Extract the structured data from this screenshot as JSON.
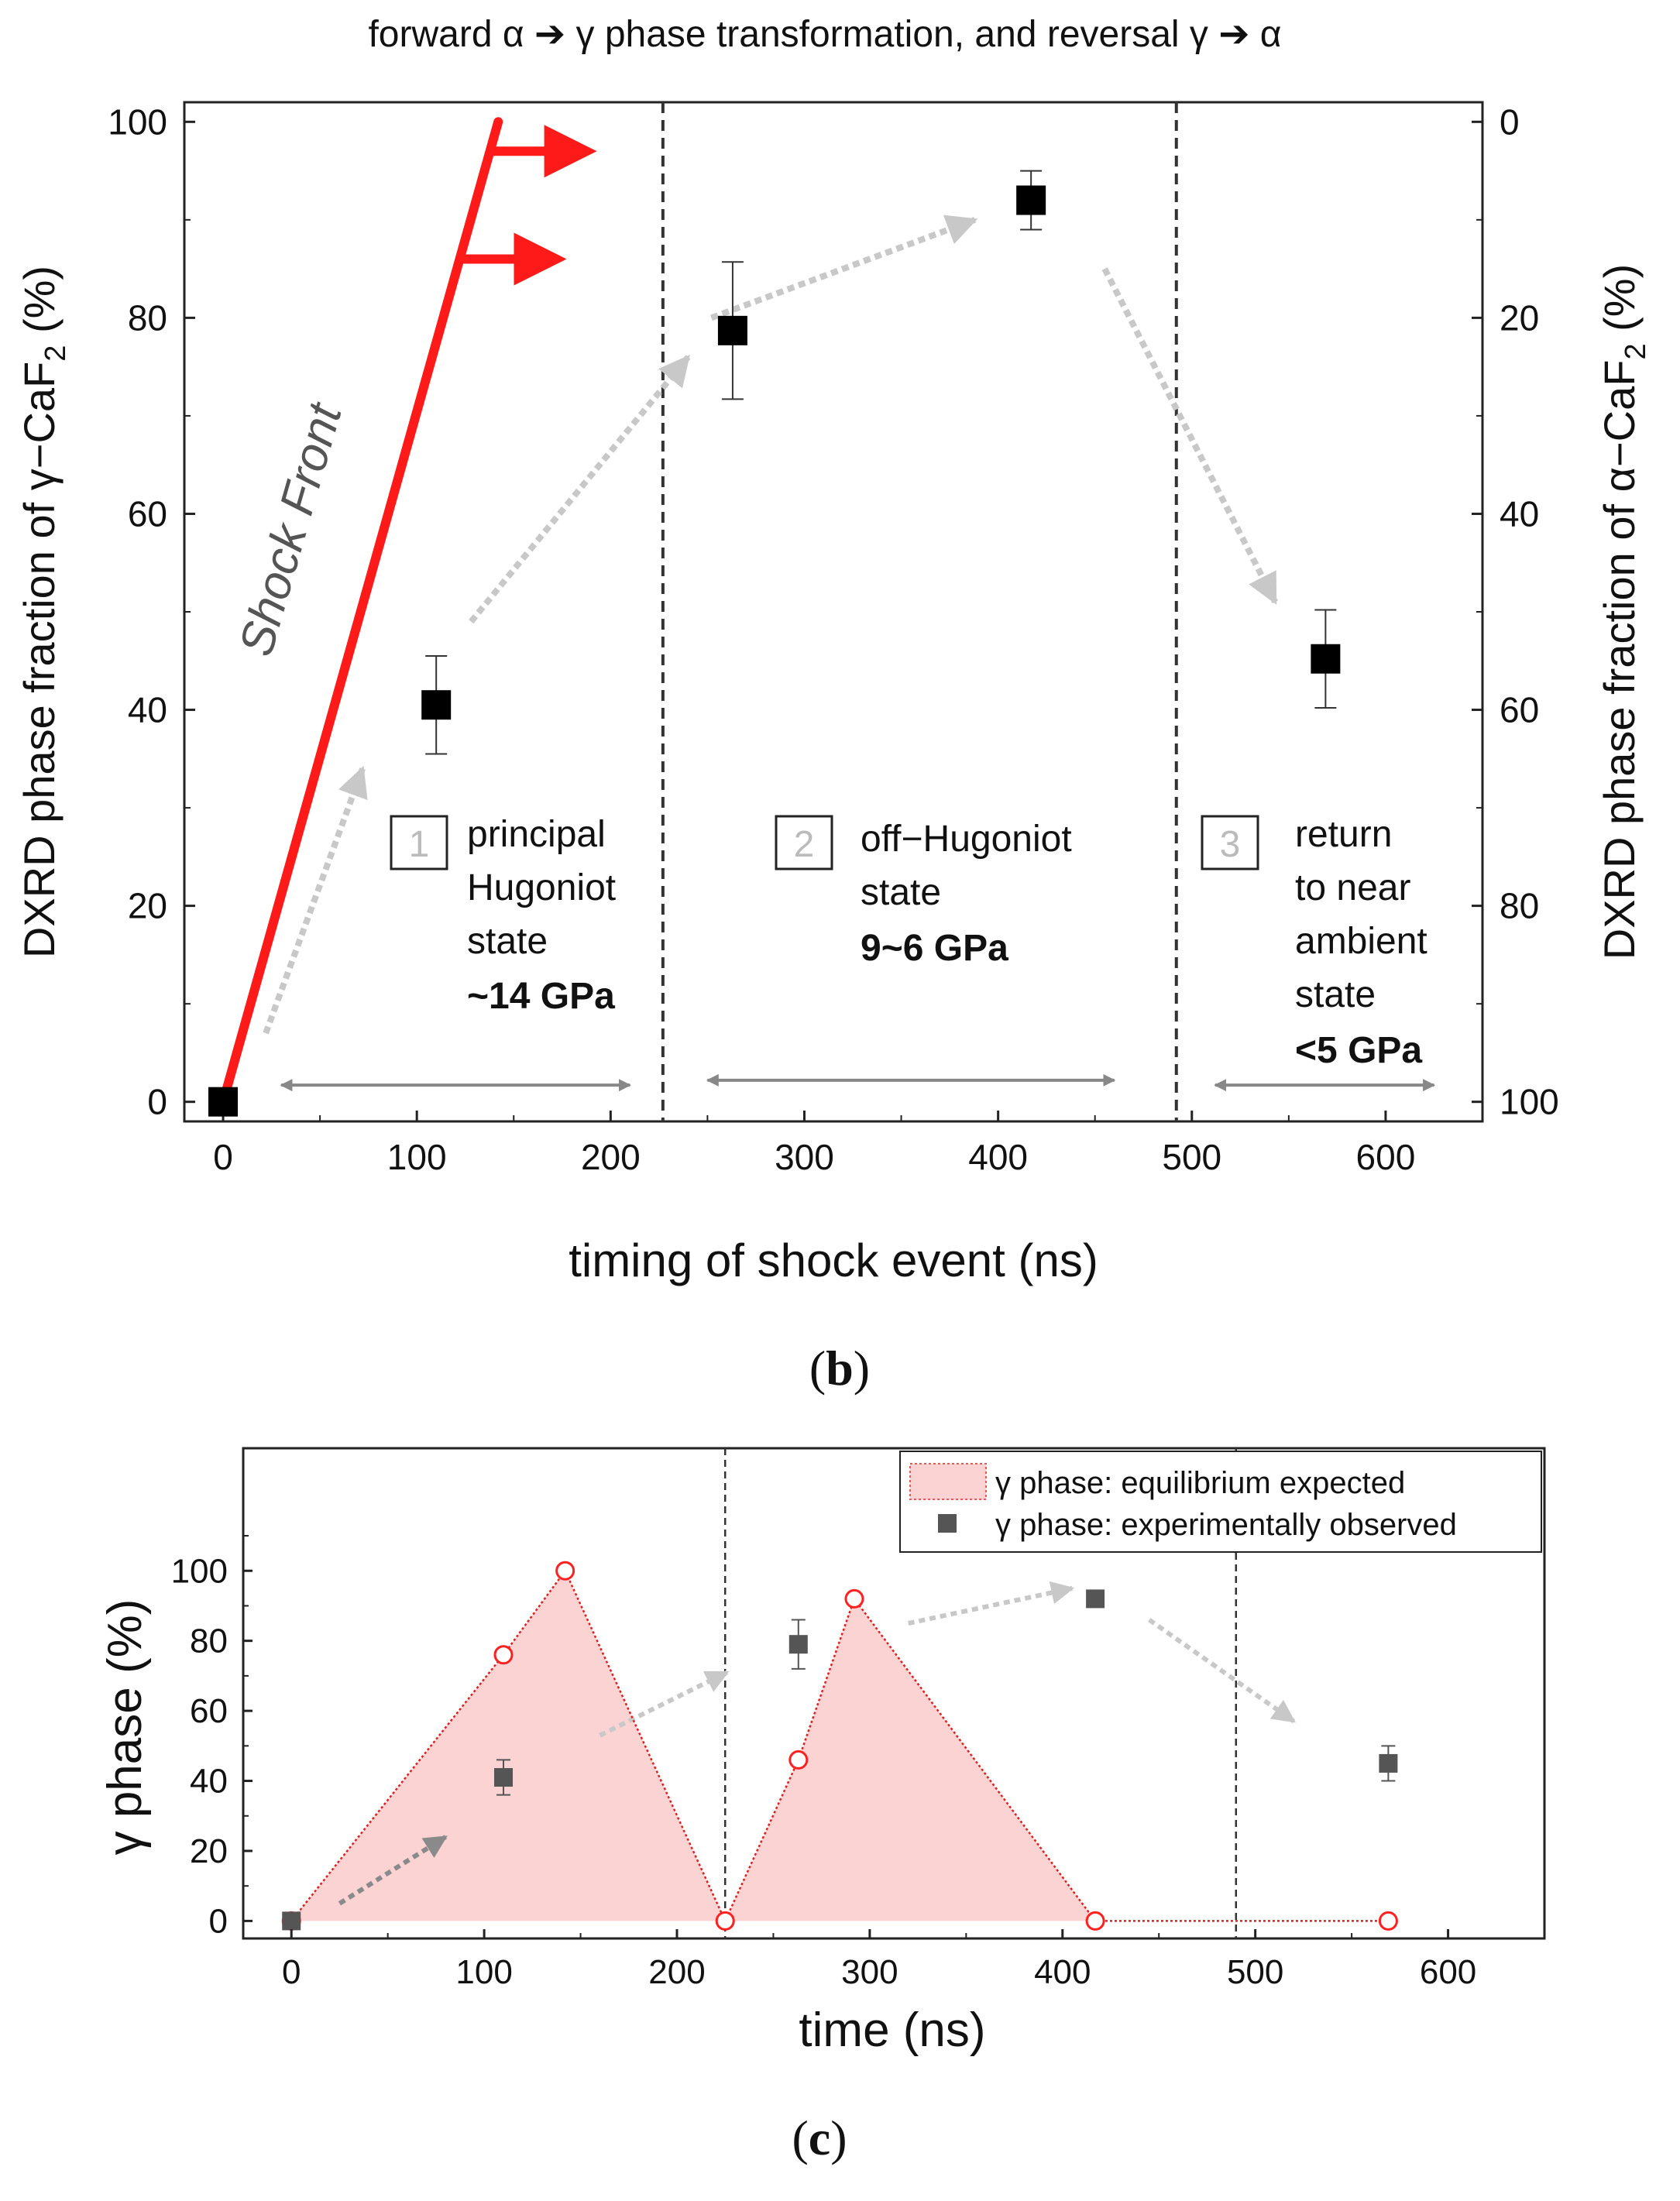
{
  "chart_data": [
    {
      "panel_label": "b",
      "type": "scatter",
      "title": "forward α ➔ γ phase transformation, and reversal  γ ➔ α",
      "xlabel": "timing of shock event (ns)",
      "ylabel_parts": [
        "DXRD phase fraction of γ−CaF",
        "2",
        " (%)"
      ],
      "y2label_parts": [
        "DXRD phase fraction of α−CaF",
        "2",
        " (%)"
      ],
      "xlim": [
        -20,
        650
      ],
      "ylim": [
        -2,
        102
      ],
      "xticks": [
        0,
        100,
        200,
        300,
        400,
        500,
        600
      ],
      "yticks": [
        0,
        20,
        40,
        60,
        80,
        100
      ],
      "y2ticks": [
        0,
        20,
        40,
        60,
        80,
        100
      ],
      "series": [
        {
          "name": "γ phase fraction",
          "points": [
            {
              "x": 0,
              "y": 0,
              "err": 0
            },
            {
              "x": 110,
              "y": 40.5,
              "err": 5
            },
            {
              "x": 263,
              "y": 78.7,
              "err": 7
            },
            {
              "x": 417,
              "y": 92,
              "err": 3
            },
            {
              "x": 569,
              "y": 45.2,
              "err": 5
            }
          ]
        }
      ],
      "shock_front_label": "Shock Front",
      "shock_front_line": {
        "from": [
          0,
          0
        ],
        "to": [
          142,
          100
        ]
      },
      "shock_front_arrows_y": [
        97,
        86
      ],
      "dividers_x": [
        227,
        492
      ],
      "regions": [
        {
          "number": "1",
          "lines": [
            "principal",
            "Hugoniot",
            "state"
          ],
          "pressure": "~14 GPa"
        },
        {
          "number": "2",
          "lines": [
            "off−Hugoniot",
            "state"
          ],
          "pressure": "9~6 GPa"
        },
        {
          "number": "3",
          "lines": [
            "return",
            "to near",
            "ambient",
            "state"
          ],
          "pressure": "<5 GPa"
        }
      ],
      "guide_arrows": [
        {
          "from": [
            22,
            7
          ],
          "to": [
            72,
            34
          ]
        },
        {
          "from": [
            128,
            49
          ],
          "to": [
            240,
            76
          ]
        },
        {
          "from": [
            252,
            80
          ],
          "to": [
            388,
            90
          ]
        },
        {
          "from": [
            455,
            85
          ],
          "to": [
            543,
            51
          ]
        }
      ],
      "range_arrows": [
        {
          "from": 30,
          "to": 210,
          "y": 1.7
        },
        {
          "from": 250,
          "to": 460,
          "y": 2.2
        },
        {
          "from": 512,
          "to": 625,
          "y": 1.7
        }
      ]
    },
    {
      "panel_label": "c",
      "type": "scatter",
      "xlabel": "time (ns)",
      "ylabel": "γ phase (%)",
      "xlim": [
        -25,
        650
      ],
      "ylim": [
        -5,
        135
      ],
      "xticks": [
        0,
        100,
        200,
        300,
        400,
        500,
        600
      ],
      "yticks": [
        0,
        20,
        40,
        60,
        80,
        100
      ],
      "series": [
        {
          "name": "γ phase: equilibrium expected",
          "points": [
            {
              "x": 0,
              "y": 0
            },
            {
              "x": 110,
              "y": 76
            },
            {
              "x": 142,
              "y": 100
            },
            {
              "x": 225,
              "y": 0
            },
            {
              "x": 263,
              "y": 46
            },
            {
              "x": 292,
              "y": 92
            },
            {
              "x": 417,
              "y": 0
            },
            {
              "x": 569,
              "y": 0
            }
          ]
        },
        {
          "name": "γ phase: experimentally observed",
          "points": [
            {
              "x": 0,
              "y": 0,
              "err": 0
            },
            {
              "x": 110,
              "y": 41,
              "err": 5
            },
            {
              "x": 263,
              "y": 79,
              "err": 7
            },
            {
              "x": 417,
              "y": 92,
              "err": 2
            },
            {
              "x": 569,
              "y": 45,
              "err": 5
            }
          ]
        }
      ],
      "dividers_x": [
        225,
        490
      ],
      "guide_arrows": [
        {
          "from": [
            25,
            5
          ],
          "to": [
            80,
            24
          ],
          "dark": true
        },
        {
          "from": [
            160,
            53
          ],
          "to": [
            226,
            71
          ],
          "dark": false
        },
        {
          "from": [
            320,
            85
          ],
          "to": [
            405,
            95
          ],
          "dark": false
        },
        {
          "from": [
            445,
            86
          ],
          "to": [
            520,
            57
          ],
          "dark": false
        }
      ],
      "legend_position": "top-right"
    }
  ]
}
